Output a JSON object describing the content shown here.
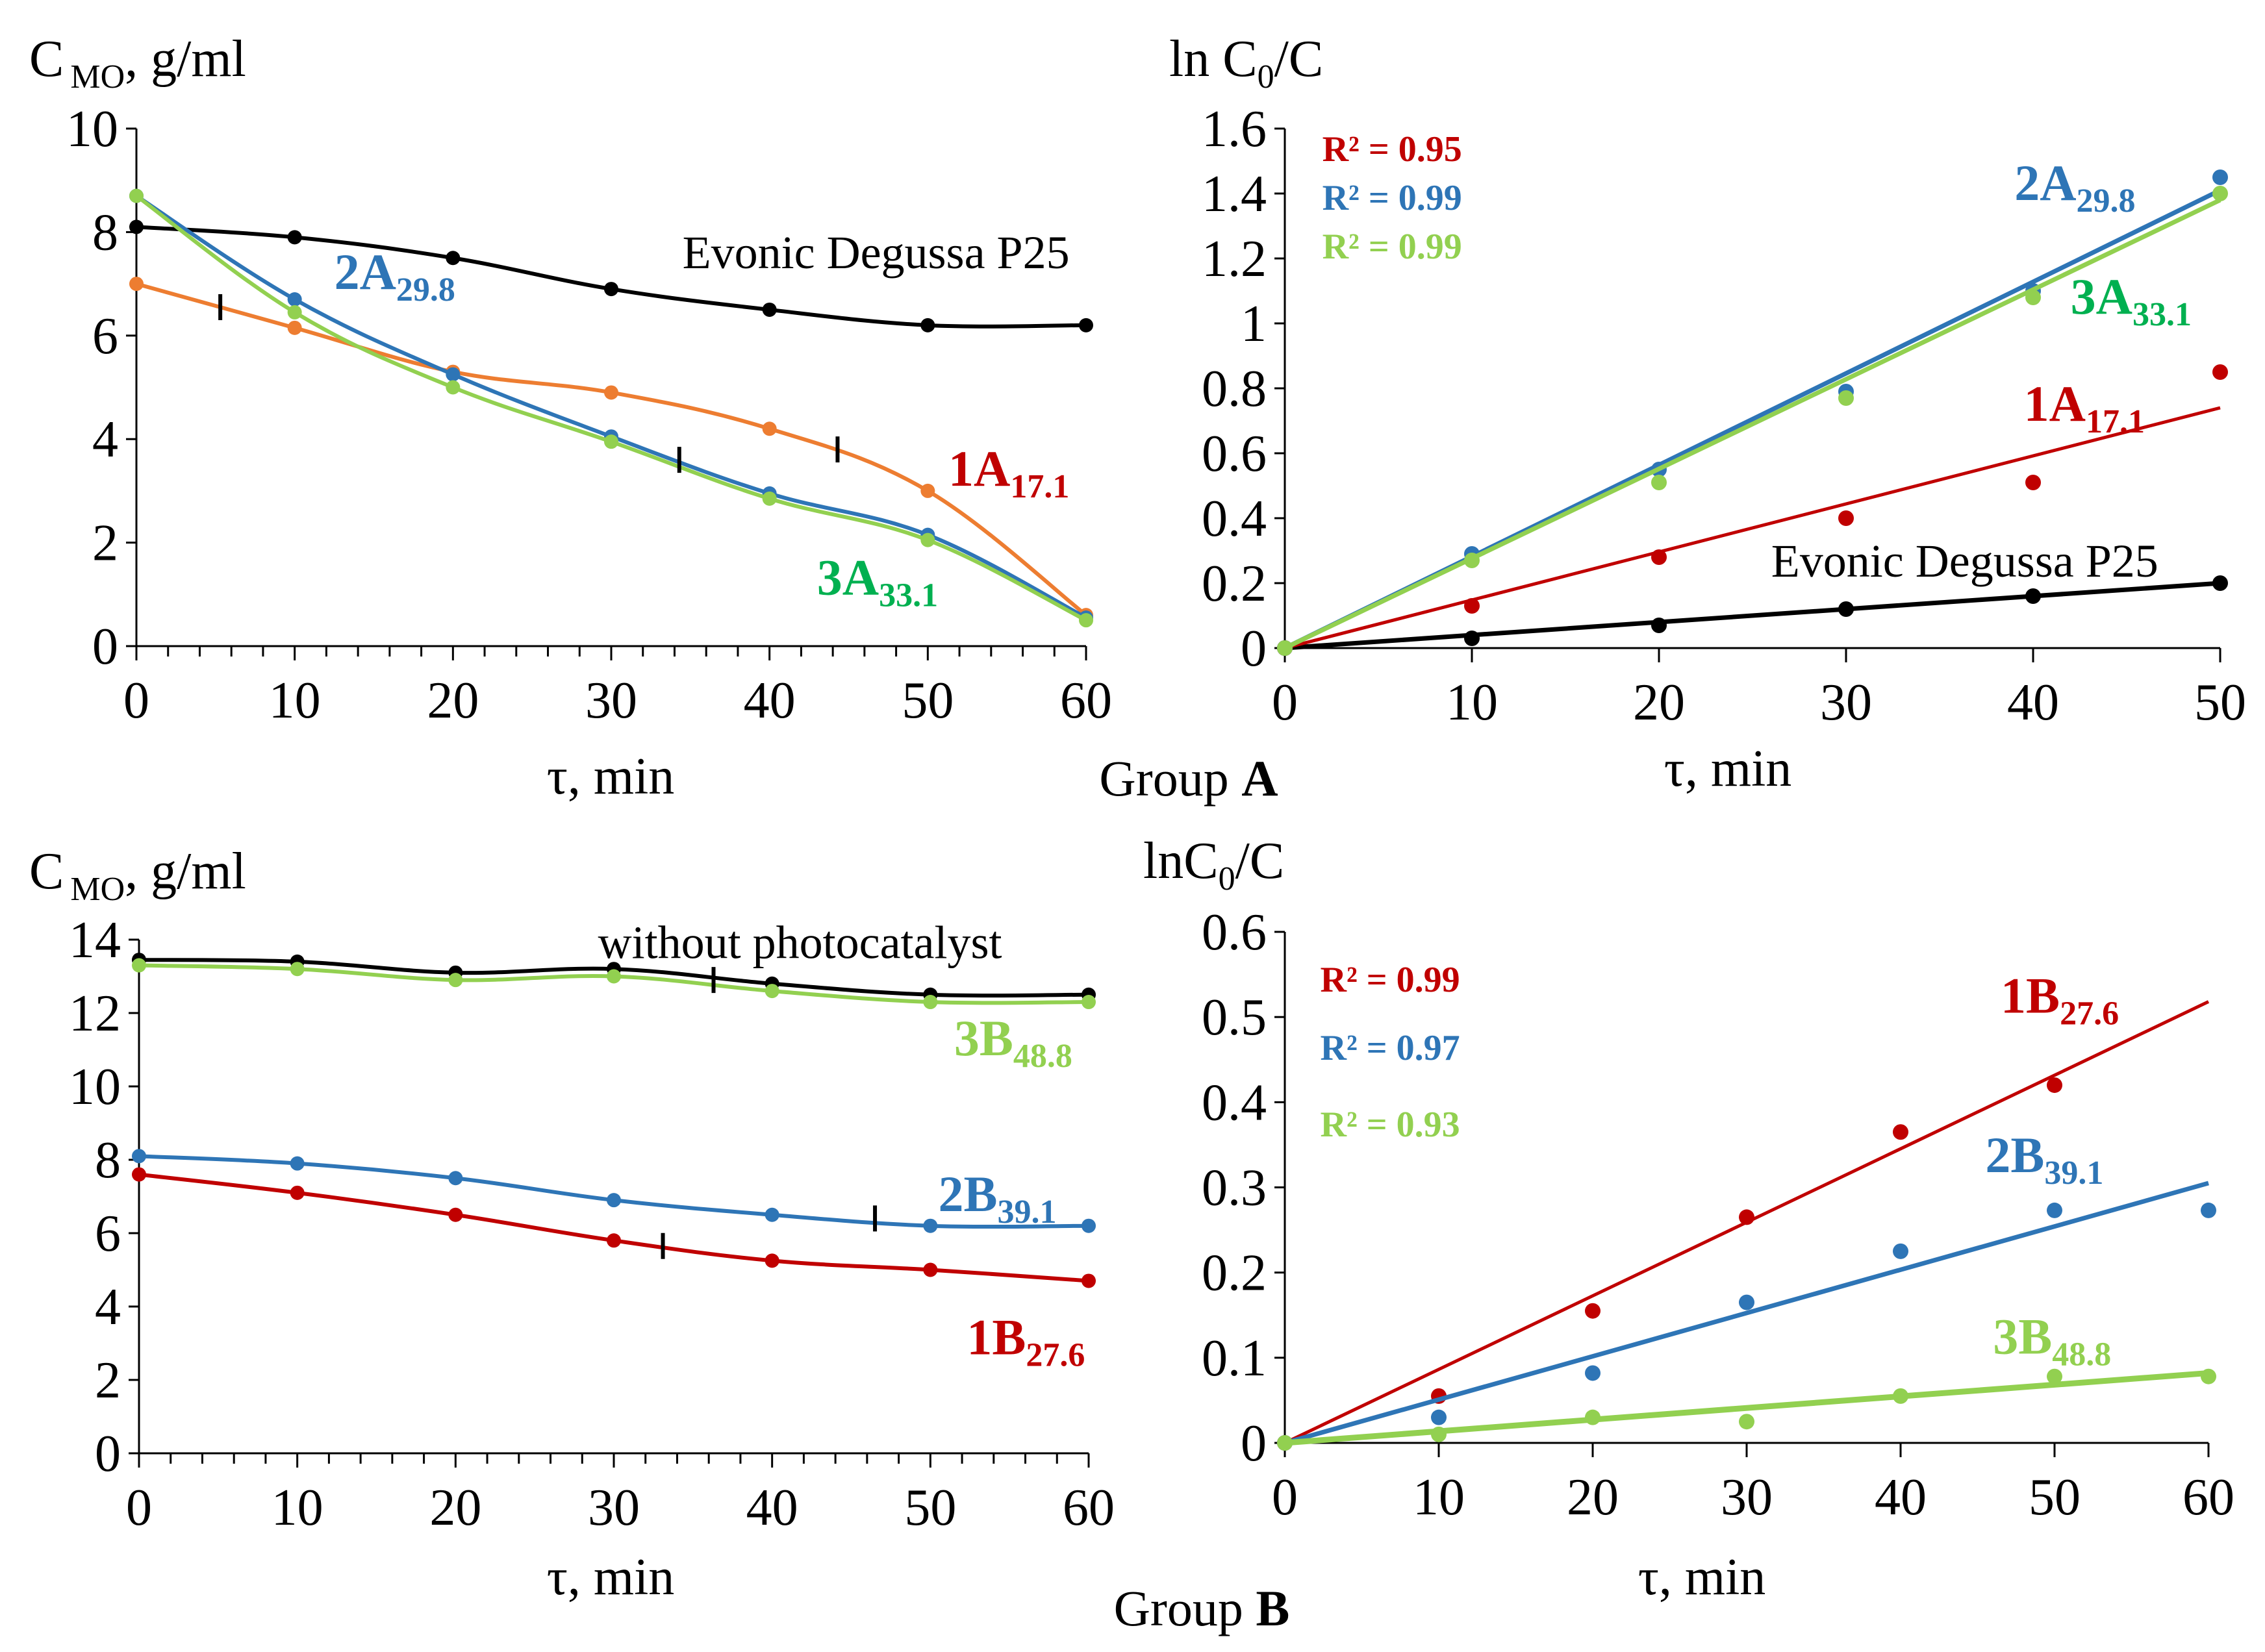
{
  "figure": {
    "group_a_label": "Group ",
    "group_a_letter": "A",
    "group_b_label": "Group ",
    "group_b_letter": "B"
  },
  "chart_data": [
    {
      "id": "a1",
      "type": "line",
      "ylabel_main": "C",
      "ylabel_sub": "MO",
      "ylabel_rest": ", g/ml",
      "xlabel": "τ, min",
      "xlim": [
        0,
        60
      ],
      "ylim": [
        0,
        10
      ],
      "xticks": [
        0,
        10,
        20,
        30,
        40,
        50,
        60
      ],
      "yticks": [
        0,
        2,
        4,
        6,
        8,
        10
      ],
      "x_minor_step": 2,
      "x": [
        0,
        10,
        20,
        30,
        40,
        50,
        60
      ],
      "series": [
        {
          "name": "Evonic Degussa P25",
          "color": "#000000",
          "values": [
            8.1,
            7.9,
            7.5,
            6.9,
            6.5,
            6.2,
            6.2
          ]
        },
        {
          "name": "1A",
          "sub": "17.1",
          "color": "#ED7D31",
          "label_color": "#C00000",
          "values": [
            7.0,
            6.15,
            5.3,
            4.9,
            4.2,
            3.0,
            0.6
          ]
        },
        {
          "name": "2A",
          "sub": "29.8",
          "color": "#2E75B6",
          "values": [
            8.7,
            6.7,
            5.25,
            4.05,
            2.95,
            2.15,
            0.55
          ]
        },
        {
          "name": "3A",
          "sub": "33.1",
          "color": "#92D050",
          "label_color": "#00B050",
          "values": [
            8.7,
            6.45,
            5.0,
            3.95,
            2.85,
            2.05,
            0.5
          ]
        }
      ],
      "markers": [
        {
          "x": 5.3,
          "y": 6.55
        },
        {
          "x": 34.3,
          "y": 3.6
        },
        {
          "x": 44.3,
          "y": 3.8
        }
      ]
    },
    {
      "id": "a2",
      "type": "scatter",
      "ylabel_main": "ln C",
      "ylabel_sub": "0",
      "ylabel_rest": "/C",
      "xlabel": "τ, min",
      "xlim": [
        0,
        50
      ],
      "ylim": [
        0,
        1.6
      ],
      "xticks": [
        0,
        10,
        20,
        30,
        40,
        50
      ],
      "yticks": [
        0,
        0.2,
        0.4,
        0.6,
        0.8,
        1,
        1.2,
        1.4,
        1.6
      ],
      "ytick_labels": [
        "0",
        "0.2",
        "0.4",
        "0.6",
        "0.8",
        "1",
        "1.2",
        "1.4",
        "1.6"
      ],
      "x": [
        0,
        10,
        20,
        30,
        40,
        50
      ],
      "series": [
        {
          "name": "Evonic Degussa P25",
          "color": "#000000",
          "values": [
            0.0,
            0.03,
            0.07,
            0.12,
            0.16,
            0.2
          ],
          "fit": [
            0,
            0.2
          ],
          "lw": 7
        },
        {
          "name": "1A",
          "sub": "17.1",
          "color": "#C00000",
          "values": [
            0.0,
            0.13,
            0.28,
            0.4,
            0.51,
            0.85
          ],
          "fit": [
            0,
            0.74
          ],
          "lw": 5
        },
        {
          "name": "2A",
          "sub": "29.8",
          "color": "#2E75B6",
          "values": [
            0.0,
            0.29,
            0.55,
            0.79,
            1.1,
            1.45
          ],
          "fit": [
            0,
            1.41
          ],
          "lw": 7
        },
        {
          "name": "3A",
          "sub": "33.1",
          "color": "#92D050",
          "label_color": "#00B050",
          "values": [
            0.0,
            0.27,
            0.51,
            0.77,
            1.08,
            1.4
          ],
          "fit": [
            0,
            1.38
          ],
          "lw": 7
        }
      ],
      "r2": [
        {
          "text": "R² = 0.95",
          "color": "#C00000"
        },
        {
          "text": "R² = 0.99",
          "color": "#2E75B6"
        },
        {
          "text": "R² = 0.99",
          "color": "#92D050"
        }
      ]
    },
    {
      "id": "b1",
      "type": "line",
      "ylabel_main": "C",
      "ylabel_sub": "MO",
      "ylabel_rest": ", g/ml",
      "xlabel": "τ, min",
      "xlim": [
        0,
        60
      ],
      "ylim": [
        0,
        14
      ],
      "xticks": [
        0,
        10,
        20,
        30,
        40,
        50,
        60
      ],
      "yticks": [
        0,
        2,
        4,
        6,
        8,
        10,
        12,
        14
      ],
      "x_minor_step": 2,
      "x": [
        0,
        10,
        20,
        30,
        40,
        50,
        60
      ],
      "series": [
        {
          "name": "without photocatalyst",
          "color": "#000000",
          "values": [
            13.45,
            13.4,
            13.1,
            13.2,
            12.8,
            12.5,
            12.5
          ]
        },
        {
          "name": "3B",
          "sub": "48.8",
          "color": "#92D050",
          "values": [
            13.3,
            13.2,
            12.9,
            13.0,
            12.6,
            12.3,
            12.3
          ]
        },
        {
          "name": "2B",
          "sub": "39.1",
          "color": "#2E75B6",
          "values": [
            8.1,
            7.9,
            7.5,
            6.9,
            6.5,
            6.2,
            6.2
          ]
        },
        {
          "name": "1B",
          "sub": "27.6",
          "color": "#C00000",
          "values": [
            7.6,
            7.1,
            6.5,
            5.8,
            5.25,
            5.0,
            4.7
          ]
        }
      ],
      "markers": [
        {
          "x": 36.3,
          "y": 12.9
        },
        {
          "x": 46.5,
          "y": 6.4
        },
        {
          "x": 33.1,
          "y": 5.65
        }
      ]
    },
    {
      "id": "b2",
      "type": "scatter",
      "ylabel_main": "lnC",
      "ylabel_sub": "0",
      "ylabel_rest": "/C",
      "xlabel": "τ, min",
      "xlim": [
        0,
        60
      ],
      "ylim": [
        0,
        0.6
      ],
      "xticks": [
        0,
        10,
        20,
        30,
        40,
        50,
        60
      ],
      "yticks": [
        0,
        0.1,
        0.2,
        0.3,
        0.4,
        0.5,
        0.6
      ],
      "ytick_labels": [
        "0",
        "0.1",
        "0.2",
        "0.3",
        "0.4",
        "0.5",
        "0.6"
      ],
      "x": [
        0,
        10,
        20,
        30,
        40,
        50,
        60
      ],
      "series": [
        {
          "name": "1B",
          "sub": "27.6",
          "color": "#C00000",
          "values": [
            0.0,
            0.055,
            0.155,
            0.265,
            0.365,
            0.42,
            null
          ],
          "fit": [
            -0.017,
            0.518
          ],
          "lw": 5
        },
        {
          "name": "2B",
          "sub": "39.1",
          "color": "#2E75B6",
          "values": [
            0.0,
            0.03,
            0.082,
            0.165,
            0.225,
            0.273,
            0.273
          ],
          "fit": [
            -0.01,
            0.305
          ],
          "lw": 7
        },
        {
          "name": "3B",
          "sub": "48.8",
          "color": "#92D050",
          "values": [
            0.0,
            0.01,
            0.03,
            0.025,
            0.055,
            0.078,
            0.078
          ],
          "fit": [
            -0.005,
            0.082
          ],
          "lw": 9
        }
      ],
      "r2": [
        {
          "text": "R² = 0.99",
          "color": "#C00000"
        },
        {
          "text": "R² = 0.97",
          "color": "#2E75B6"
        },
        {
          "text": "R² = 0.93",
          "color": "#92D050"
        }
      ]
    }
  ]
}
